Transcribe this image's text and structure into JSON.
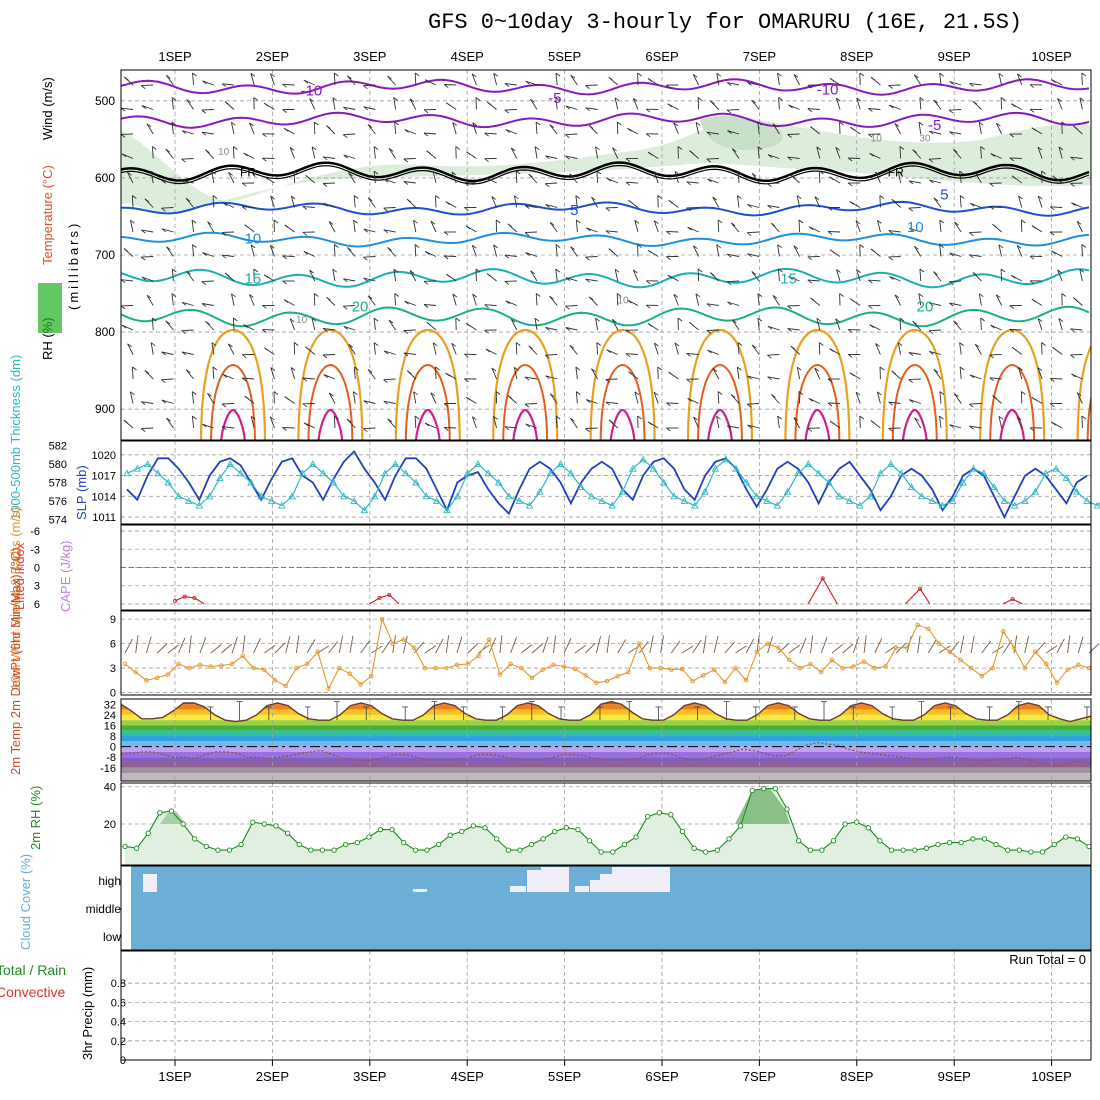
{
  "title": "GFS 0~10day 3-hourly for OMARURU (16E, 21.5S)",
  "colors": {
    "purple": "#8a1ab8",
    "black": "#000000",
    "blue": "#1f4fcf",
    "lightblue": "#1f8fdf",
    "teal": "#18b0b0",
    "green": "#18b08a",
    "orange": "#e8a020",
    "darkorange": "#e06020",
    "magenta": "#d0208a",
    "slp": "#2040c0",
    "thickness": "#30b8c0",
    "wind10m": "#e8942a",
    "rh2m": "#208a20",
    "cloud": "#6baed6",
    "rhfill": "#d8ebd8"
  },
  "chart_data": [
    {
      "type": "contour",
      "panel": "upper-air",
      "xticks": [
        "1SEP",
        "2SEP",
        "3SEP",
        "4SEP",
        "5SEP",
        "6SEP",
        "7SEP",
        "8SEP",
        "9SEP",
        "10SEP"
      ],
      "ylabel_parts": {
        "rh": "RH (%)",
        "temperature": "Temperature (°C)",
        "wind": "Wind (m/s)",
        "units": "(millibars)"
      },
      "yticks": [
        500,
        600,
        700,
        800,
        900
      ],
      "ylim": [
        460,
        940
      ],
      "temperature_labels": [
        {
          "day": 1.4,
          "p": 493,
          "text": "-10"
        },
        {
          "day": 3.9,
          "p": 503,
          "text": "-5"
        },
        {
          "day": 6.7,
          "p": 492,
          "text": "-10"
        },
        {
          "day": 7.8,
          "p": 538,
          "text": "-5"
        },
        {
          "day": 0.75,
          "p": 598,
          "text": "FR"
        },
        {
          "day": 7.4,
          "p": 598,
          "text": "FR"
        },
        {
          "day": 4.1,
          "p": 648,
          "text": "5"
        },
        {
          "day": 7.9,
          "p": 628,
          "text": "5"
        },
        {
          "day": 0.8,
          "p": 685,
          "text": "10"
        },
        {
          "day": 7.6,
          "p": 670,
          "text": "10"
        },
        {
          "day": 0.8,
          "p": 737,
          "text": "15"
        },
        {
          "day": 6.3,
          "p": 737,
          "text": "15"
        },
        {
          "day": 1.9,
          "p": 773,
          "text": "20"
        },
        {
          "day": 7.7,
          "p": 773,
          "text": "20"
        }
      ],
      "rh_labels": [
        {
          "day": 0.5,
          "p": 570,
          "text": "10"
        },
        {
          "day": 1.3,
          "p": 788,
          "text": "10"
        },
        {
          "day": 4.6,
          "p": 763,
          "text": "10"
        },
        {
          "day": 7.2,
          "p": 553,
          "text": "10"
        },
        {
          "day": 7.7,
          "p": 553,
          "text": "30"
        }
      ]
    },
    {
      "type": "line",
      "panel": "slp-thickness",
      "y1label": "1000-500mb Thickness (dm)",
      "y1ticks": [
        574,
        576,
        578,
        580,
        582
      ],
      "y2label": "SLP (mb)",
      "y2ticks": [
        1011,
        1014,
        1017,
        1020
      ],
      "series": [
        {
          "name": "SLP (mb)",
          "values": [
            1015,
            1013.5,
            1017,
            1019.5,
            1019.5,
            1018,
            1016,
            1013.5,
            1017,
            1019,
            1019.5,
            1018.5,
            1016,
            1013.5,
            1016.5,
            1019,
            1019.5,
            1017,
            1016,
            1013.5,
            1016.5,
            1019,
            1020.5,
            1018,
            1016,
            1013.5,
            1017,
            1019.5,
            1019.5,
            1018,
            1015,
            1012,
            1016,
            1017,
            1017.5,
            1015,
            1013,
            1011.5,
            1015,
            1018,
            1019,
            1018,
            1016,
            1013,
            1016,
            1018,
            1019,
            1018,
            1015,
            1013.5,
            1017,
            1019,
            1019.5,
            1018,
            1015,
            1013.5,
            1017,
            1019,
            1019.5,
            1018,
            1015,
            1012.5,
            1015,
            1018,
            1019,
            1018,
            1016,
            1013,
            1016,
            1018,
            1019,
            1017,
            1015,
            1012,
            1014,
            1017,
            1018,
            1017,
            1015,
            1012,
            1014,
            1017,
            1018,
            1017,
            1014,
            1011,
            1014,
            1017,
            1018,
            1017,
            1015,
            1013,
            1016,
            1017
          ]
        },
        {
          "name": "1000-500mb Thickness (dm)",
          "values": [
            579,
            579.5,
            580,
            579,
            578,
            576.5,
            576,
            575.5,
            576.5,
            578.5,
            580,
            579,
            578,
            576.5,
            576,
            575.5,
            576.5,
            579,
            580,
            579,
            578,
            576.5,
            576,
            575,
            576.5,
            579,
            580,
            579,
            578,
            576.5,
            576,
            575,
            576.5,
            579,
            580,
            579,
            578,
            576.5,
            576,
            575.5,
            577,
            579,
            580,
            579,
            577.5,
            576.5,
            576,
            575.5,
            577,
            579.5,
            580.5,
            579.5,
            578,
            576.5,
            576,
            575.5,
            577,
            579.5,
            580.5,
            579.5,
            578,
            576.5,
            576,
            575.5,
            577,
            579,
            580,
            579,
            578,
            576.5,
            576,
            575.5,
            576.5,
            579,
            580,
            579,
            577.5,
            576.5,
            576,
            575.5,
            576,
            578,
            579.5,
            579,
            577.5,
            576,
            575.5,
            576,
            577,
            579,
            579.5,
            578.5,
            577,
            576,
            575.5,
            576.5
          ]
        }
      ]
    },
    {
      "type": "line",
      "panel": "stability",
      "y1label": "Lifted Index",
      "y1ticks": [
        -6,
        -3,
        0,
        3,
        6
      ],
      "y2label": "CAPE (J/kg)",
      "series": [
        {
          "name": "Lifted Index",
          "points": [
            [
              0.0,
              5.5
            ],
            [
              0.1,
              4.8
            ],
            [
              0.2,
              5.0
            ],
            [
              0.3,
              6.0
            ],
            [
              2.0,
              6.0
            ],
            [
              2.1,
              5.0
            ],
            [
              2.2,
              4.5
            ],
            [
              2.3,
              6.0
            ],
            [
              6.5,
              6.0
            ],
            [
              6.65,
              1.8
            ],
            [
              6.8,
              6.0
            ],
            [
              7.5,
              6.0
            ],
            [
              7.65,
              3.5
            ],
            [
              7.75,
              6.0
            ],
            [
              8.5,
              6.0
            ],
            [
              8.6,
              5.2
            ],
            [
              8.7,
              6.0
            ]
          ]
        }
      ]
    },
    {
      "type": "line",
      "panel": "wind10m",
      "ylabel": "10m Wind Speed & Barbs (m/s)",
      "yticks": [
        0,
        3,
        6,
        9
      ],
      "series": [
        {
          "name": "10m Wind Speed",
          "values": [
            3.5,
            2.5,
            1.5,
            1.8,
            2.2,
            3.5,
            3.0,
            3.4,
            3.2,
            3.3,
            3.5,
            4.5,
            3.0,
            2.8,
            1.5,
            0.8,
            3.0,
            3.5,
            5.0,
            0.5,
            3.0,
            2.3,
            1.0,
            2.0,
            9.0,
            6.0,
            6.5,
            5.5,
            3.0,
            3.0,
            3.0,
            3.4,
            3.5,
            4.5,
            6.5,
            2.2,
            3.5,
            3.0,
            1.8,
            2.8,
            3.4,
            3.2,
            2.9,
            2.1,
            1.2,
            1.4,
            2.0,
            2.5,
            6.0,
            3.0,
            3.0,
            2.8,
            2.9,
            1.4,
            2.1,
            2.8,
            1.3,
            3.0,
            1.5,
            5.0,
            6.0,
            5.5,
            4.0,
            3.0,
            3.5,
            2.5,
            4.0,
            3.0,
            3.2,
            3.8,
            3.0,
            3.2,
            5.5,
            5.5,
            8.3,
            7.8,
            6.0,
            5.0,
            4.0,
            3.0,
            2.0,
            3.0,
            7.5,
            5.5,
            3.0,
            5.0,
            3.5,
            1.2,
            2.8,
            3.4,
            3.0
          ]
        }
      ]
    },
    {
      "type": "area",
      "panel": "temp2m",
      "ylabel": "2m Temp 2m DewPt (6hr Min/Max) (°C)",
      "yticks": [
        -16,
        -8,
        0,
        8,
        16,
        24,
        32
      ],
      "series": [
        {
          "name": "2m Temp",
          "values": [
            32,
            27,
            21,
            21,
            22,
            27,
            33,
            33,
            30,
            24,
            20,
            19,
            20,
            24,
            31,
            33,
            31,
            25,
            21,
            20,
            20,
            24,
            31,
            33,
            31,
            25,
            21,
            20,
            20,
            24,
            31,
            33,
            31,
            25,
            21,
            20,
            20,
            24,
            31,
            33,
            31,
            25,
            21,
            20,
            20,
            24,
            32,
            34,
            32,
            26,
            21,
            20,
            20,
            24,
            31,
            33,
            31,
            25,
            21,
            20,
            20,
            24,
            31,
            33,
            31,
            25,
            21,
            20,
            20,
            24,
            31,
            33,
            31,
            25,
            21,
            20,
            20,
            24,
            31,
            33,
            31,
            25,
            21,
            20,
            20,
            24,
            31,
            33,
            31,
            24,
            21,
            19,
            21,
            23
          ]
        },
        {
          "name": "2m DewPt",
          "values": [
            -6,
            -5,
            -4,
            -4,
            -6,
            -8,
            -8,
            -9,
            -6,
            -4,
            -4,
            -5,
            -8,
            -8,
            -9,
            -8,
            -7,
            -5,
            -4,
            -3,
            -6,
            -9,
            -10,
            -11,
            -10,
            -8,
            -6,
            -6,
            -8,
            -10,
            -10,
            -10,
            -10,
            -8,
            -6,
            -6,
            -7,
            -9,
            -10,
            -10,
            -10,
            -8,
            -6,
            -6,
            -7,
            -9,
            -10,
            -10,
            -10,
            -9,
            -6,
            -5,
            -5,
            -8,
            -10,
            -10,
            -8,
            -6,
            -4,
            -2,
            -3,
            -5,
            -7,
            -7,
            -3,
            1,
            3,
            2,
            1,
            -2,
            -4,
            -5,
            -6,
            -7,
            -8,
            -9,
            -10,
            -9,
            -8,
            -8,
            -9,
            -11,
            -11,
            -10,
            -9,
            -8,
            -10,
            -12,
            -13,
            -15,
            -12,
            -11,
            -13
          ]
        }
      ]
    },
    {
      "type": "area",
      "panel": "rh2m",
      "ylabel": "2m RH (%)",
      "yticks": [
        20,
        40
      ],
      "series": [
        {
          "name": "2m RH",
          "values": [
            8,
            7,
            15,
            26,
            27,
            20,
            12,
            8,
            6,
            6,
            9,
            21,
            20,
            19,
            15,
            9,
            6,
            6,
            6,
            9,
            10,
            13,
            17,
            17,
            10,
            6,
            6,
            9,
            14,
            16,
            19,
            18,
            12,
            6,
            6,
            9,
            12,
            16,
            18,
            17,
            11,
            5,
            5,
            9,
            13,
            24,
            26,
            25,
            16,
            7,
            5,
            6,
            12,
            19,
            38,
            39,
            39,
            28,
            11,
            6,
            6,
            11,
            20,
            21,
            18,
            11,
            6,
            6,
            6,
            7,
            9,
            10,
            10,
            12,
            12,
            9,
            6,
            6,
            5,
            5,
            9,
            13,
            12,
            8
          ]
        }
      ]
    },
    {
      "type": "heatmap",
      "panel": "cloud",
      "ylabel": "Cloud Cover (%)",
      "levels": [
        "high",
        "middle",
        "low"
      ]
    },
    {
      "type": "bar",
      "panel": "precip",
      "ylabel_total": "Total / Rain",
      "ylabel_conv": "Convective",
      "ylabel": "3hr Precip (mm)",
      "yticks": [
        "0",
        "0.2",
        "0.4",
        "0.6",
        "0.8"
      ],
      "ylim": [
        0,
        1
      ],
      "run_total": "Run Total = 0",
      "values": []
    }
  ]
}
